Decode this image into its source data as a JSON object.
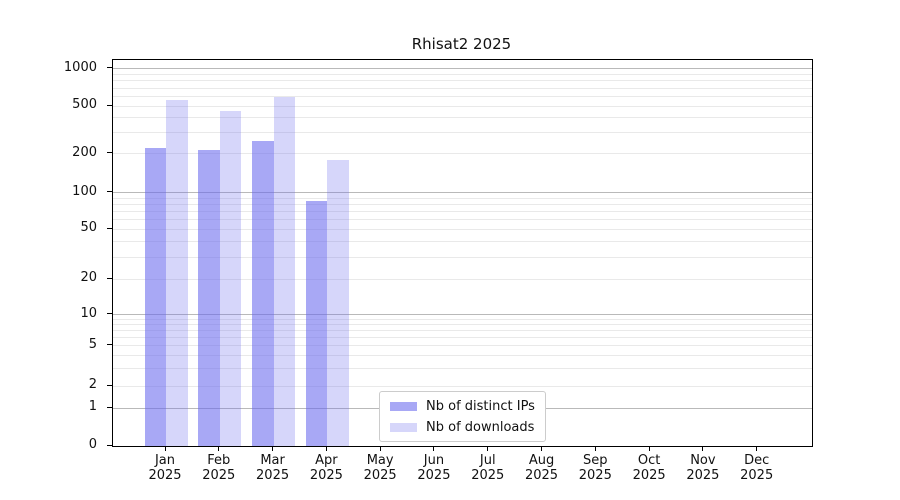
{
  "chart_data": {
    "type": "bar",
    "title": "Rhisat2 2025",
    "x_categories": [
      {
        "month": "Jan",
        "year": "2025"
      },
      {
        "month": "Feb",
        "year": "2025"
      },
      {
        "month": "Mar",
        "year": "2025"
      },
      {
        "month": "Apr",
        "year": "2025"
      },
      {
        "month": "May",
        "year": "2025"
      },
      {
        "month": "Jun",
        "year": "2025"
      },
      {
        "month": "Jul",
        "year": "2025"
      },
      {
        "month": "Aug",
        "year": "2025"
      },
      {
        "month": "Sep",
        "year": "2025"
      },
      {
        "month": "Oct",
        "year": "2025"
      },
      {
        "month": "Nov",
        "year": "2025"
      },
      {
        "month": "Dec",
        "year": "2025"
      }
    ],
    "series": [
      {
        "name": "Nb of distinct IPs",
        "color": "rgba(102,102,238,0.57)",
        "values": [
          222,
          213,
          254,
          85,
          null,
          null,
          null,
          null,
          null,
          null,
          null,
          null
        ]
      },
      {
        "name": "Nb of downloads",
        "color": "rgba(102,102,238,0.27)",
        "values": [
          560,
          455,
          590,
          180,
          null,
          null,
          null,
          null,
          null,
          null,
          null,
          null
        ]
      }
    ],
    "y_axis": {
      "scale": "symlog",
      "ticks": [
        0,
        1,
        2,
        5,
        10,
        20,
        50,
        100,
        200,
        500,
        1000
      ]
    },
    "grid": {
      "major_values": [
        1,
        10,
        100,
        1000
      ],
      "minor_values": [
        2,
        3,
        4,
        5,
        6,
        7,
        8,
        9,
        20,
        30,
        40,
        50,
        60,
        70,
        80,
        90,
        200,
        300,
        400,
        500,
        600,
        700,
        800,
        900
      ],
      "major_color": "#b9b9b9",
      "minor_color": "#e9e9e9"
    },
    "legend_position": "lower center"
  }
}
